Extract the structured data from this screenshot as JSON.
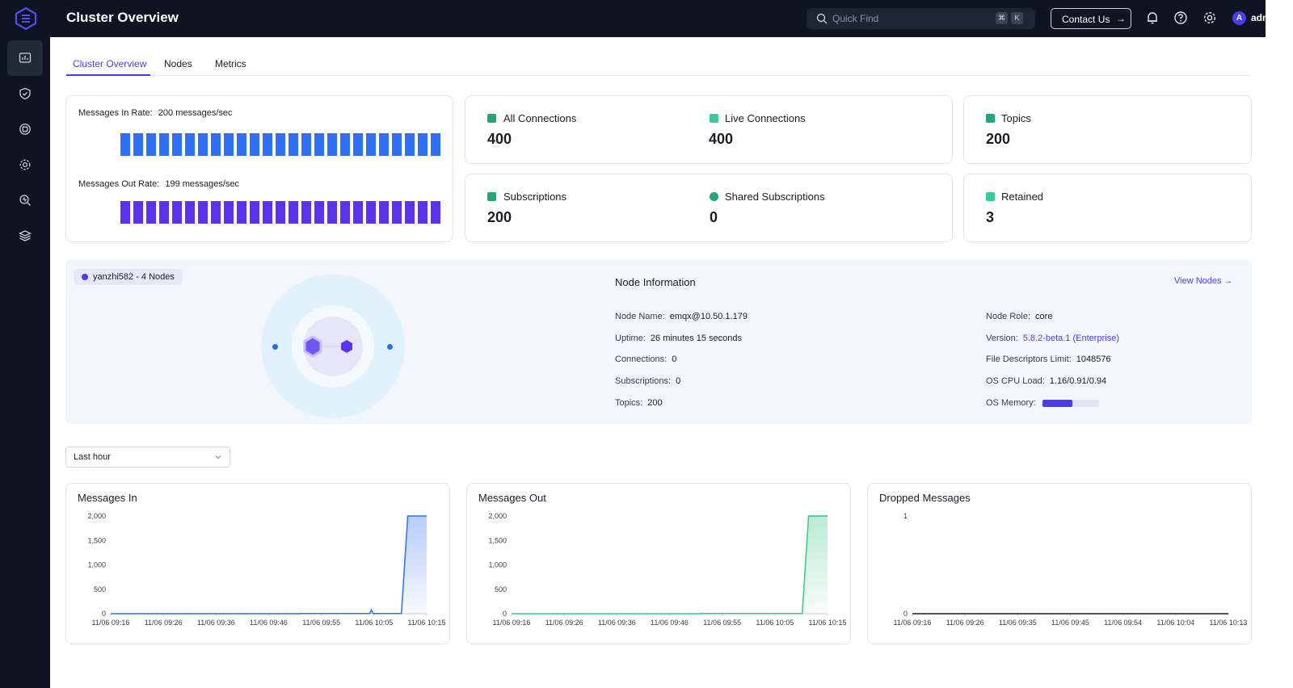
{
  "app": {
    "title": "Cluster Overview"
  },
  "search": {
    "placeholder": "Quick Find",
    "shortcut_mod": "⌘",
    "shortcut_key": "K"
  },
  "header": {
    "contact_label": "Contact Us",
    "contact_arrow": "→",
    "user": "admin",
    "avatar_letter": "A"
  },
  "sidebar": {
    "items": [
      "dashboard-icon",
      "shield-icon",
      "chip-icon",
      "gear-icon",
      "diagnose-icon",
      "layers-icon"
    ]
  },
  "tabs": [
    {
      "label": "Cluster Overview",
      "active": true
    },
    {
      "label": "Nodes",
      "active": false
    },
    {
      "label": "Metrics",
      "active": false
    }
  ],
  "rates": {
    "in_label": "Messages In Rate:",
    "in_value": "200 messages/sec",
    "out_label": "Messages Out Rate:",
    "out_value": "199 messages/sec",
    "in_color": "#2f6ff3",
    "out_color": "#5b32ee"
  },
  "stats": {
    "all_connections": {
      "label": "All Connections",
      "value": "400"
    },
    "live_connections": {
      "label": "Live Connections",
      "value": "400"
    },
    "topics": {
      "label": "Topics",
      "value": "200"
    },
    "subscriptions": {
      "label": "Subscriptions",
      "value": "200"
    },
    "shared_subscriptions": {
      "label": "Shared Subscriptions",
      "value": "0"
    },
    "retained": {
      "label": "Retained",
      "value": "3"
    }
  },
  "cluster": {
    "tag": "yanzhi582 - 4 Nodes"
  },
  "node_info": {
    "title": "Node Information",
    "view_nodes": "View Nodes →",
    "node_name": {
      "label": "Node Name:",
      "value": "emqx@10.50.1.179"
    },
    "uptime": {
      "label": "Uptime:",
      "value": "26 minutes 15 seconds"
    },
    "connections": {
      "label": "Connections:",
      "value": "0"
    },
    "subscriptions": {
      "label": "Subscriptions:",
      "value": "0"
    },
    "topics": {
      "label": "Topics:",
      "value": "200"
    },
    "node_role": {
      "label": "Node Role:",
      "value": "core"
    },
    "version": {
      "label": "Version:",
      "value": "5.8.2-beta.1 (Enterprise)"
    },
    "fd_limit": {
      "label": "File Descriptors Limit:",
      "value": "1048576"
    },
    "cpu_load": {
      "label": "OS CPU Load:",
      "value": "1.16/0.91/0.94"
    },
    "memory": {
      "label": "OS Memory:",
      "fraction": 0.53
    }
  },
  "time_range": {
    "value": "Last hour"
  },
  "chart_data": [
    {
      "type": "area",
      "title": "Messages In",
      "color": "#2f6ff3",
      "x": [
        "11/06 09:16",
        "11/06 09:26",
        "11/06 09:36",
        "11/06 09:46",
        "11/06 09:55",
        "11/06 10:05",
        "11/06 10:15"
      ],
      "yticks": [
        "0",
        "500",
        "1,000",
        "1,500",
        "2,000"
      ],
      "ylim": [
        0,
        2000
      ],
      "points": [
        [
          0,
          0
        ],
        [
          0.6,
          0
        ],
        [
          0.6,
          5
        ],
        [
          0.82,
          5
        ],
        [
          0.825,
          80
        ],
        [
          0.83,
          5
        ],
        [
          0.92,
          5
        ],
        [
          0.94,
          2000
        ],
        [
          1.0,
          2000
        ]
      ]
    },
    {
      "type": "area",
      "title": "Messages Out",
      "color": "#37c68a",
      "x": [
        "11/06 09:16",
        "11/06 09:26",
        "11/06 09:36",
        "11/06 09:46",
        "11/06 09:55",
        "11/06 10:05",
        "11/06 10:15"
      ],
      "yticks": [
        "0",
        "500",
        "1,000",
        "1,500",
        "2,000"
      ],
      "ylim": [
        0,
        2000
      ],
      "points": [
        [
          0,
          0
        ],
        [
          0.6,
          0
        ],
        [
          0.6,
          4
        ],
        [
          0.92,
          4
        ],
        [
          0.94,
          2000
        ],
        [
          1.0,
          2000
        ]
      ]
    },
    {
      "type": "line",
      "title": "Dropped Messages",
      "color": "#1c1d24",
      "x": [
        "11/06 09:16",
        "11/06 09:26",
        "11/06 09:35",
        "11/06 09:45",
        "11/06 09:54",
        "11/06 10:04",
        "11/06 10:13"
      ],
      "yticks": [
        "0",
        "1"
      ],
      "ylim": [
        0,
        1
      ],
      "points": [
        [
          0,
          0
        ],
        [
          0.58,
          0
        ],
        [
          1.0,
          0
        ]
      ]
    }
  ]
}
